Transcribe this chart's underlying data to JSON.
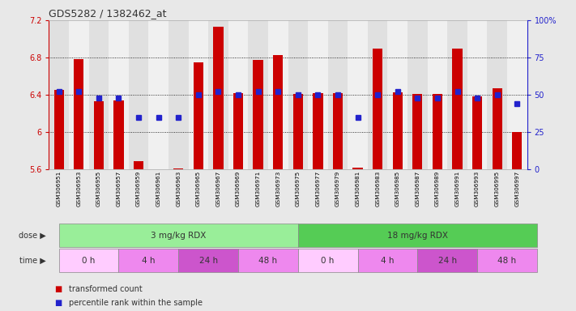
{
  "title": "GDS5282 / 1382462_at",
  "samples": [
    "GSM306951",
    "GSM306953",
    "GSM306955",
    "GSM306957",
    "GSM306959",
    "GSM306961",
    "GSM306963",
    "GSM306965",
    "GSM306967",
    "GSM306969",
    "GSM306971",
    "GSM306973",
    "GSM306975",
    "GSM306977",
    "GSM306979",
    "GSM306981",
    "GSM306983",
    "GSM306985",
    "GSM306987",
    "GSM306989",
    "GSM306991",
    "GSM306993",
    "GSM306995",
    "GSM306997"
  ],
  "transformed_count": [
    6.45,
    6.78,
    6.33,
    6.34,
    5.69,
    5.6,
    5.61,
    6.75,
    7.13,
    6.42,
    6.77,
    6.83,
    6.41,
    6.42,
    6.42,
    5.62,
    6.9,
    6.43,
    6.41,
    6.41,
    6.9,
    6.38,
    6.47,
    6.0
  ],
  "percentile_rank": [
    52,
    52,
    48,
    48,
    35,
    35,
    35,
    50,
    52,
    50,
    52,
    52,
    50,
    50,
    50,
    35,
    50,
    52,
    48,
    48,
    52,
    48,
    50,
    44
  ],
  "ylim_left": [
    5.6,
    7.2
  ],
  "ylim_right": [
    0,
    100
  ],
  "yticks_left": [
    5.6,
    6.0,
    6.4,
    6.8,
    7.2
  ],
  "yticks_right": [
    0,
    25,
    50,
    75,
    100
  ],
  "ytick_labels_left": [
    "5.6",
    "6",
    "6.4",
    "6.8",
    "7.2"
  ],
  "ytick_labels_right": [
    "0",
    "25",
    "50",
    "75",
    "100%"
  ],
  "bar_color": "#cc0000",
  "marker_color": "#2222cc",
  "base_value": 5.6,
  "grid_color": "#000000",
  "bg_color": "#e8e8e8",
  "plot_bg": "#ffffff",
  "col_bg_even": "#e0e0e0",
  "col_bg_odd": "#f0f0f0",
  "dose_groups": [
    {
      "text": "3 mg/kg RDX",
      "start": 0,
      "end": 12,
      "color": "#99ee99"
    },
    {
      "text": "18 mg/kg RDX",
      "start": 12,
      "end": 24,
      "color": "#55cc55"
    }
  ],
  "time_groups": [
    {
      "text": "0 h",
      "start": 0,
      "end": 3,
      "color": "#ffccff"
    },
    {
      "text": "4 h",
      "start": 3,
      "end": 6,
      "color": "#ee88ee"
    },
    {
      "text": "24 h",
      "start": 6,
      "end": 9,
      "color": "#cc55cc"
    },
    {
      "text": "48 h",
      "start": 9,
      "end": 12,
      "color": "#ee88ee"
    },
    {
      "text": "0 h",
      "start": 12,
      "end": 15,
      "color": "#ffccff"
    },
    {
      "text": "4 h",
      "start": 15,
      "end": 18,
      "color": "#ee88ee"
    },
    {
      "text": "24 h",
      "start": 18,
      "end": 21,
      "color": "#cc55cc"
    },
    {
      "text": "48 h",
      "start": 21,
      "end": 24,
      "color": "#ee88ee"
    }
  ],
  "legend_items": [
    {
      "color": "#cc0000",
      "label": "transformed count"
    },
    {
      "color": "#2222cc",
      "label": "percentile rank within the sample"
    }
  ]
}
